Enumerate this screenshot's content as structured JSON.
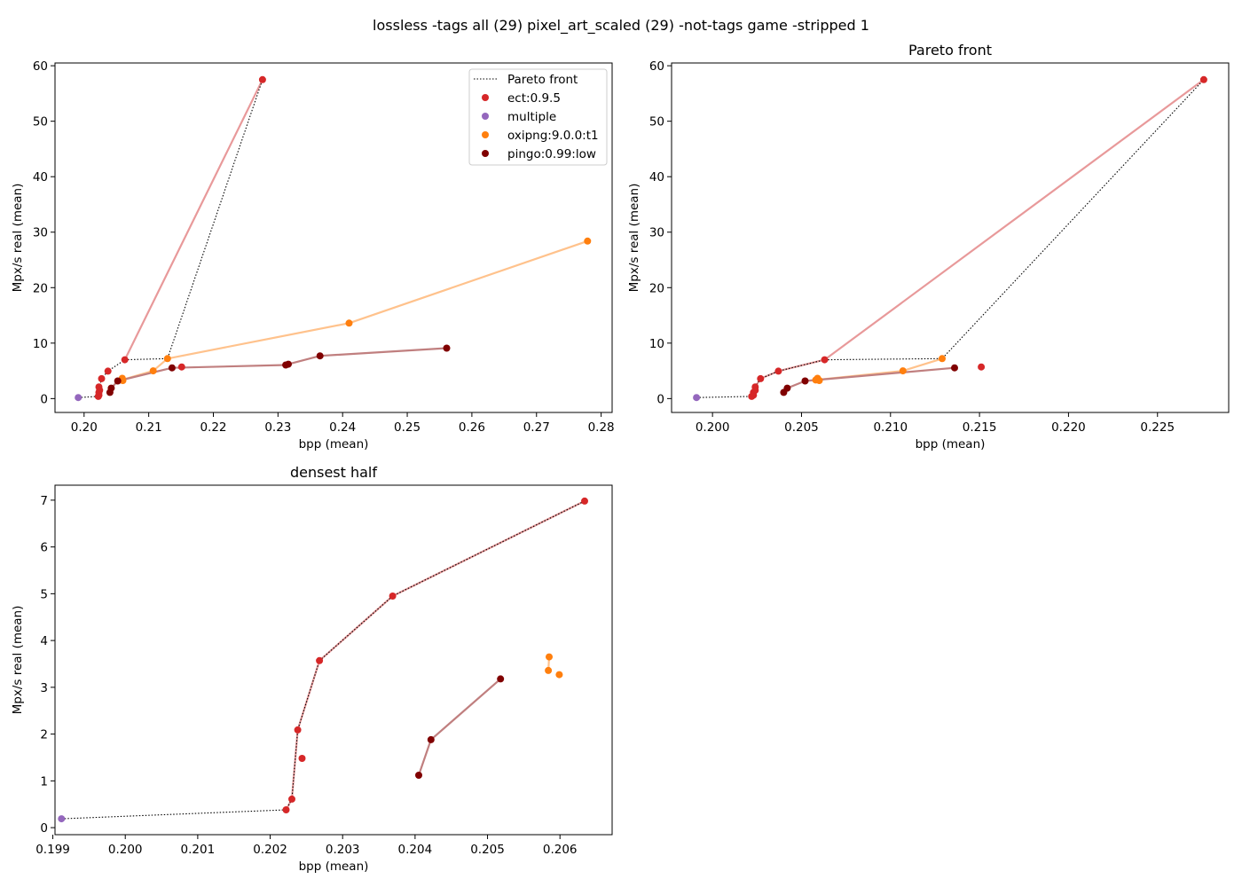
{
  "suptitle": "lossless -tags all (29) pixel_art_scaled (29) -not-tags game -stripped 1",
  "colors": {
    "ect": "#d62728",
    "multiple": "#9467bd",
    "oxipng": "#ff7f0e",
    "pingo": "#800000",
    "ect_line": "#e8999a",
    "oxipng_line": "#ffc28c",
    "pingo_line": "#c07f7f",
    "front": "#000000"
  },
  "legend": {
    "front": "Pareto front",
    "ect": "ect:0.9.5",
    "multiple": "multiple",
    "oxipng": "oxipng:9.0.0:t1",
    "pingo": "pingo:0.99:low"
  },
  "chart_data": [
    {
      "type": "scatter",
      "title": "",
      "xlabel": "bpp (mean)",
      "ylabel": "Mpx/s real (mean)",
      "xlim": [
        0.1955,
        0.2817
      ],
      "ylim": [
        -2.5,
        60.5
      ],
      "xticks": [
        "0.20",
        "0.21",
        "0.22",
        "0.23",
        "0.24",
        "0.25",
        "0.26",
        "0.27",
        "0.28"
      ],
      "xtick_values": [
        0.2,
        0.21,
        0.22,
        0.23,
        0.24,
        0.25,
        0.26,
        0.27,
        0.28
      ],
      "yticks": [
        "0",
        "10",
        "20",
        "30",
        "40",
        "50",
        "60"
      ],
      "ytick_values": [
        0,
        10,
        20,
        30,
        40,
        50,
        60
      ],
      "legend_position": "top-right",
      "series": [
        {
          "key": "ect",
          "name": "ect:0.9.5",
          "line": [
            [
              0.2063,
              7.0
            ],
            [
              0.2276,
              57.5
            ]
          ],
          "points": [
            [
              0.2022,
              0.4
            ],
            [
              0.2023,
              0.6
            ],
            [
              0.2023,
              1.1
            ],
            [
              0.2023,
              2.1
            ],
            [
              0.2024,
              1.5
            ],
            [
              0.2027,
              3.6
            ],
            [
              0.2037,
              4.95
            ],
            [
              0.2063,
              7.0
            ],
            [
              0.2151,
              5.7
            ],
            [
              0.2276,
              57.5
            ]
          ]
        },
        {
          "key": "multiple",
          "name": "multiple",
          "line": [],
          "points": [
            [
              0.1991,
              0.19
            ]
          ]
        },
        {
          "key": "oxipng",
          "name": "oxipng:9.0.0:t1",
          "line": [
            [
              0.2058,
              3.35
            ],
            [
              0.2107,
              5.0
            ],
            [
              0.2129,
              7.2
            ],
            [
              0.241,
              13.6
            ],
            [
              0.2779,
              28.4
            ]
          ],
          "points": [
            [
              0.2058,
              3.35
            ],
            [
              0.2059,
              3.65
            ],
            [
              0.206,
              3.25
            ],
            [
              0.2107,
              5.0
            ],
            [
              0.2129,
              7.2
            ],
            [
              0.241,
              13.6
            ],
            [
              0.2779,
              28.4
            ]
          ]
        },
        {
          "key": "pingo",
          "name": "pingo:0.99:low",
          "line": [
            [
              0.204,
              1.12
            ],
            [
              0.2042,
              1.88
            ],
            [
              0.2052,
              3.18
            ],
            [
              0.2136,
              5.55
            ],
            [
              0.2312,
              6.05
            ],
            [
              0.2316,
              6.2
            ],
            [
              0.2365,
              7.7
            ],
            [
              0.2561,
              9.1
            ]
          ],
          "points": [
            [
              0.204,
              1.12
            ],
            [
              0.2042,
              1.88
            ],
            [
              0.2052,
              3.18
            ],
            [
              0.2136,
              5.55
            ],
            [
              0.2312,
              6.05
            ],
            [
              0.2316,
              6.2
            ],
            [
              0.2365,
              7.7
            ],
            [
              0.2561,
              9.1
            ]
          ]
        }
      ],
      "pareto_front": [
        [
          0.1991,
          0.19
        ],
        [
          0.2022,
          0.4
        ],
        [
          0.2023,
          0.6
        ],
        [
          0.2024,
          2.1
        ],
        [
          0.2027,
          3.6
        ],
        [
          0.2037,
          4.95
        ],
        [
          0.2063,
          7.0
        ],
        [
          0.2129,
          7.2
        ],
        [
          0.2276,
          57.5
        ]
      ]
    },
    {
      "type": "scatter",
      "title": "Pareto front",
      "xlabel": "bpp (mean)",
      "ylabel": "Mpx/s real (mean)",
      "xlim": [
        0.1977,
        0.229
      ],
      "ylim": [
        -2.5,
        60.5
      ],
      "xticks": [
        "0.200",
        "0.205",
        "0.210",
        "0.215",
        "0.220",
        "0.225"
      ],
      "xtick_values": [
        0.2,
        0.205,
        0.21,
        0.215,
        0.22,
        0.225
      ],
      "yticks": [
        "0",
        "10",
        "20",
        "30",
        "40",
        "50",
        "60"
      ],
      "ytick_values": [
        0,
        10,
        20,
        30,
        40,
        50,
        60
      ],
      "series": [
        {
          "key": "ect",
          "name": "ect:0.9.5",
          "line": [
            [
              0.2022,
              0.4
            ],
            [
              0.2023,
              0.6
            ],
            [
              0.2024,
              2.1
            ],
            [
              0.2027,
              3.6
            ],
            [
              0.2037,
              4.95
            ],
            [
              0.2063,
              7.0
            ],
            [
              0.2276,
              57.5
            ]
          ],
          "points": [
            [
              0.2022,
              0.4
            ],
            [
              0.2023,
              0.6
            ],
            [
              0.2023,
              1.1
            ],
            [
              0.2024,
              2.1
            ],
            [
              0.2024,
              1.5
            ],
            [
              0.2027,
              3.6
            ],
            [
              0.2037,
              4.95
            ],
            [
              0.2063,
              7.0
            ],
            [
              0.2151,
              5.7
            ],
            [
              0.2276,
              57.5
            ]
          ]
        },
        {
          "key": "multiple",
          "name": "multiple",
          "line": [],
          "points": [
            [
              0.1991,
              0.19
            ]
          ]
        },
        {
          "key": "oxipng",
          "name": "oxipng:9.0.0:t1",
          "line": [
            [
              0.2058,
              3.35
            ],
            [
              0.2107,
              5.0
            ],
            [
              0.2129,
              7.2
            ]
          ],
          "points": [
            [
              0.2058,
              3.35
            ],
            [
              0.2059,
              3.65
            ],
            [
              0.206,
              3.25
            ],
            [
              0.2107,
              5.0
            ],
            [
              0.2129,
              7.2
            ]
          ]
        },
        {
          "key": "pingo",
          "name": "pingo:0.99:low",
          "line": [
            [
              0.204,
              1.12
            ],
            [
              0.2042,
              1.88
            ],
            [
              0.2052,
              3.18
            ],
            [
              0.2136,
              5.55
            ]
          ],
          "points": [
            [
              0.204,
              1.12
            ],
            [
              0.2042,
              1.88
            ],
            [
              0.2052,
              3.18
            ],
            [
              0.2136,
              5.55
            ]
          ]
        }
      ],
      "pareto_front": [
        [
          0.1991,
          0.19
        ],
        [
          0.2022,
          0.4
        ],
        [
          0.2023,
          0.6
        ],
        [
          0.2024,
          2.1
        ],
        [
          0.2027,
          3.6
        ],
        [
          0.2037,
          4.95
        ],
        [
          0.2063,
          7.0
        ],
        [
          0.2129,
          7.2
        ],
        [
          0.2276,
          57.5
        ]
      ]
    },
    {
      "type": "scatter",
      "title": "densest half",
      "xlabel": "bpp (mean)",
      "ylabel": "Mpx/s real (mean)",
      "xlim": [
        0.19903,
        0.20672
      ],
      "ylim": [
        -0.15,
        7.32
      ],
      "xticks": [
        "0.199",
        "0.200",
        "0.201",
        "0.202",
        "0.203",
        "0.204",
        "0.205",
        "0.206"
      ],
      "xtick_values": [
        0.199,
        0.2,
        0.201,
        0.202,
        0.203,
        0.204,
        0.205,
        0.206
      ],
      "yticks": [
        "0",
        "1",
        "2",
        "3",
        "4",
        "5",
        "6",
        "7"
      ],
      "ytick_values": [
        0,
        1,
        2,
        3,
        4,
        5,
        6,
        7
      ],
      "series": [
        {
          "key": "ect",
          "name": "ect:0.9.5",
          "line": [
            [
              0.20222,
              0.38
            ],
            [
              0.2023,
              0.61
            ],
            [
              0.20238,
              2.09
            ],
            [
              0.20268,
              3.57
            ],
            [
              0.20369,
              4.95
            ],
            [
              0.20634,
              6.98
            ]
          ],
          "points": [
            [
              0.20222,
              0.38
            ],
            [
              0.2023,
              0.61
            ],
            [
              0.20238,
              2.09
            ],
            [
              0.20244,
              1.48
            ],
            [
              0.20268,
              3.57
            ],
            [
              0.20369,
              4.95
            ],
            [
              0.20634,
              6.98
            ]
          ]
        },
        {
          "key": "multiple",
          "name": "multiple",
          "line": [],
          "points": [
            [
              0.19912,
              0.19
            ]
          ]
        },
        {
          "key": "oxipng",
          "name": "oxipng:9.0.0:t1",
          "line": [
            [
              0.20584,
              3.36
            ],
            [
              0.20585,
              3.65
            ]
          ],
          "points": [
            [
              0.20584,
              3.36
            ],
            [
              0.20585,
              3.65
            ],
            [
              0.20599,
              3.27
            ]
          ]
        },
        {
          "key": "pingo",
          "name": "pingo:0.99:low",
          "line": [
            [
              0.20405,
              1.12
            ],
            [
              0.20422,
              1.88
            ],
            [
              0.20518,
              3.18
            ]
          ],
          "points": [
            [
              0.20405,
              1.12
            ],
            [
              0.20422,
              1.88
            ],
            [
              0.20518,
              3.18
            ]
          ]
        }
      ],
      "pareto_front": [
        [
          0.19912,
          0.19
        ],
        [
          0.20222,
          0.38
        ],
        [
          0.2023,
          0.61
        ],
        [
          0.20238,
          2.09
        ],
        [
          0.20268,
          3.57
        ],
        [
          0.20369,
          4.95
        ],
        [
          0.20634,
          6.98
        ]
      ]
    }
  ]
}
